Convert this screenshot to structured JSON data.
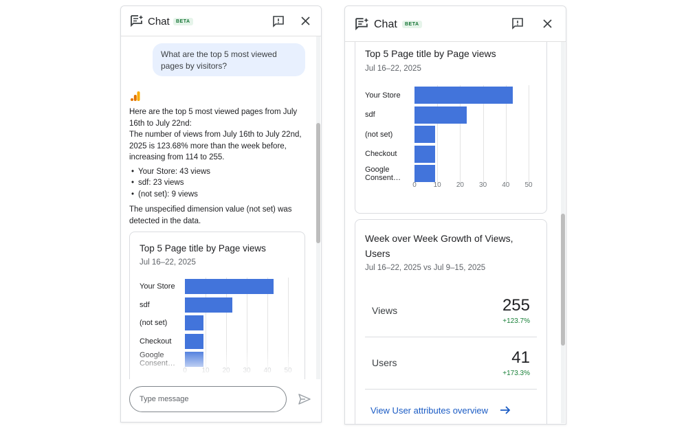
{
  "left_panel": {
    "header": {
      "title": "Chat",
      "badge": "BETA"
    },
    "user_message": "What are the top 5 most viewed pages by visitors?",
    "answer": {
      "intro": "Here are the top 5 most viewed pages from July 16th to July 22nd:",
      "summary": "The number of views from July 16th to July 22nd, 2025 is 123.68% more than the week before, increasing from 114 to 255.",
      "bullets": [
        "Your Store: 43 views",
        "sdf: 23 views",
        "(not set): 9 views"
      ],
      "note": "The unspecified dimension value (not set) was detected in the data."
    },
    "composer": {
      "placeholder": "Type message"
    }
  },
  "chart_data": {
    "type": "bar",
    "orientation": "horizontal",
    "title": "Top 5 Page title by Page views",
    "subtitle": "Jul 16–22, 2025",
    "categories": [
      "Your Store",
      "sdf",
      "(not set)",
      "Checkout",
      "Google Consent…"
    ],
    "category_lines": [
      [
        "Your Store"
      ],
      [
        "sdf"
      ],
      [
        "(not set)"
      ],
      [
        "Checkout"
      ],
      [
        "Google",
        "Consent…"
      ]
    ],
    "values": [
      43,
      23,
      9,
      9,
      9
    ],
    "xlim": [
      0,
      50
    ],
    "xticks": [
      0,
      10,
      20,
      30,
      40,
      50
    ],
    "grid": true,
    "bar_color": "#4274db"
  },
  "right_panel": {
    "header": {
      "title": "Chat",
      "badge": "BETA"
    },
    "growth_card": {
      "title": "Week over Week Growth of Views, Users",
      "subtitle": "Jul 16–22, 2025 vs Jul 9–15, 2025",
      "metrics": [
        {
          "label": "Views",
          "value": "255",
          "delta": "+123.7%"
        },
        {
          "label": "Users",
          "value": "41",
          "delta": "+173.3%"
        }
      ],
      "link": "View User attributes overview"
    }
  }
}
